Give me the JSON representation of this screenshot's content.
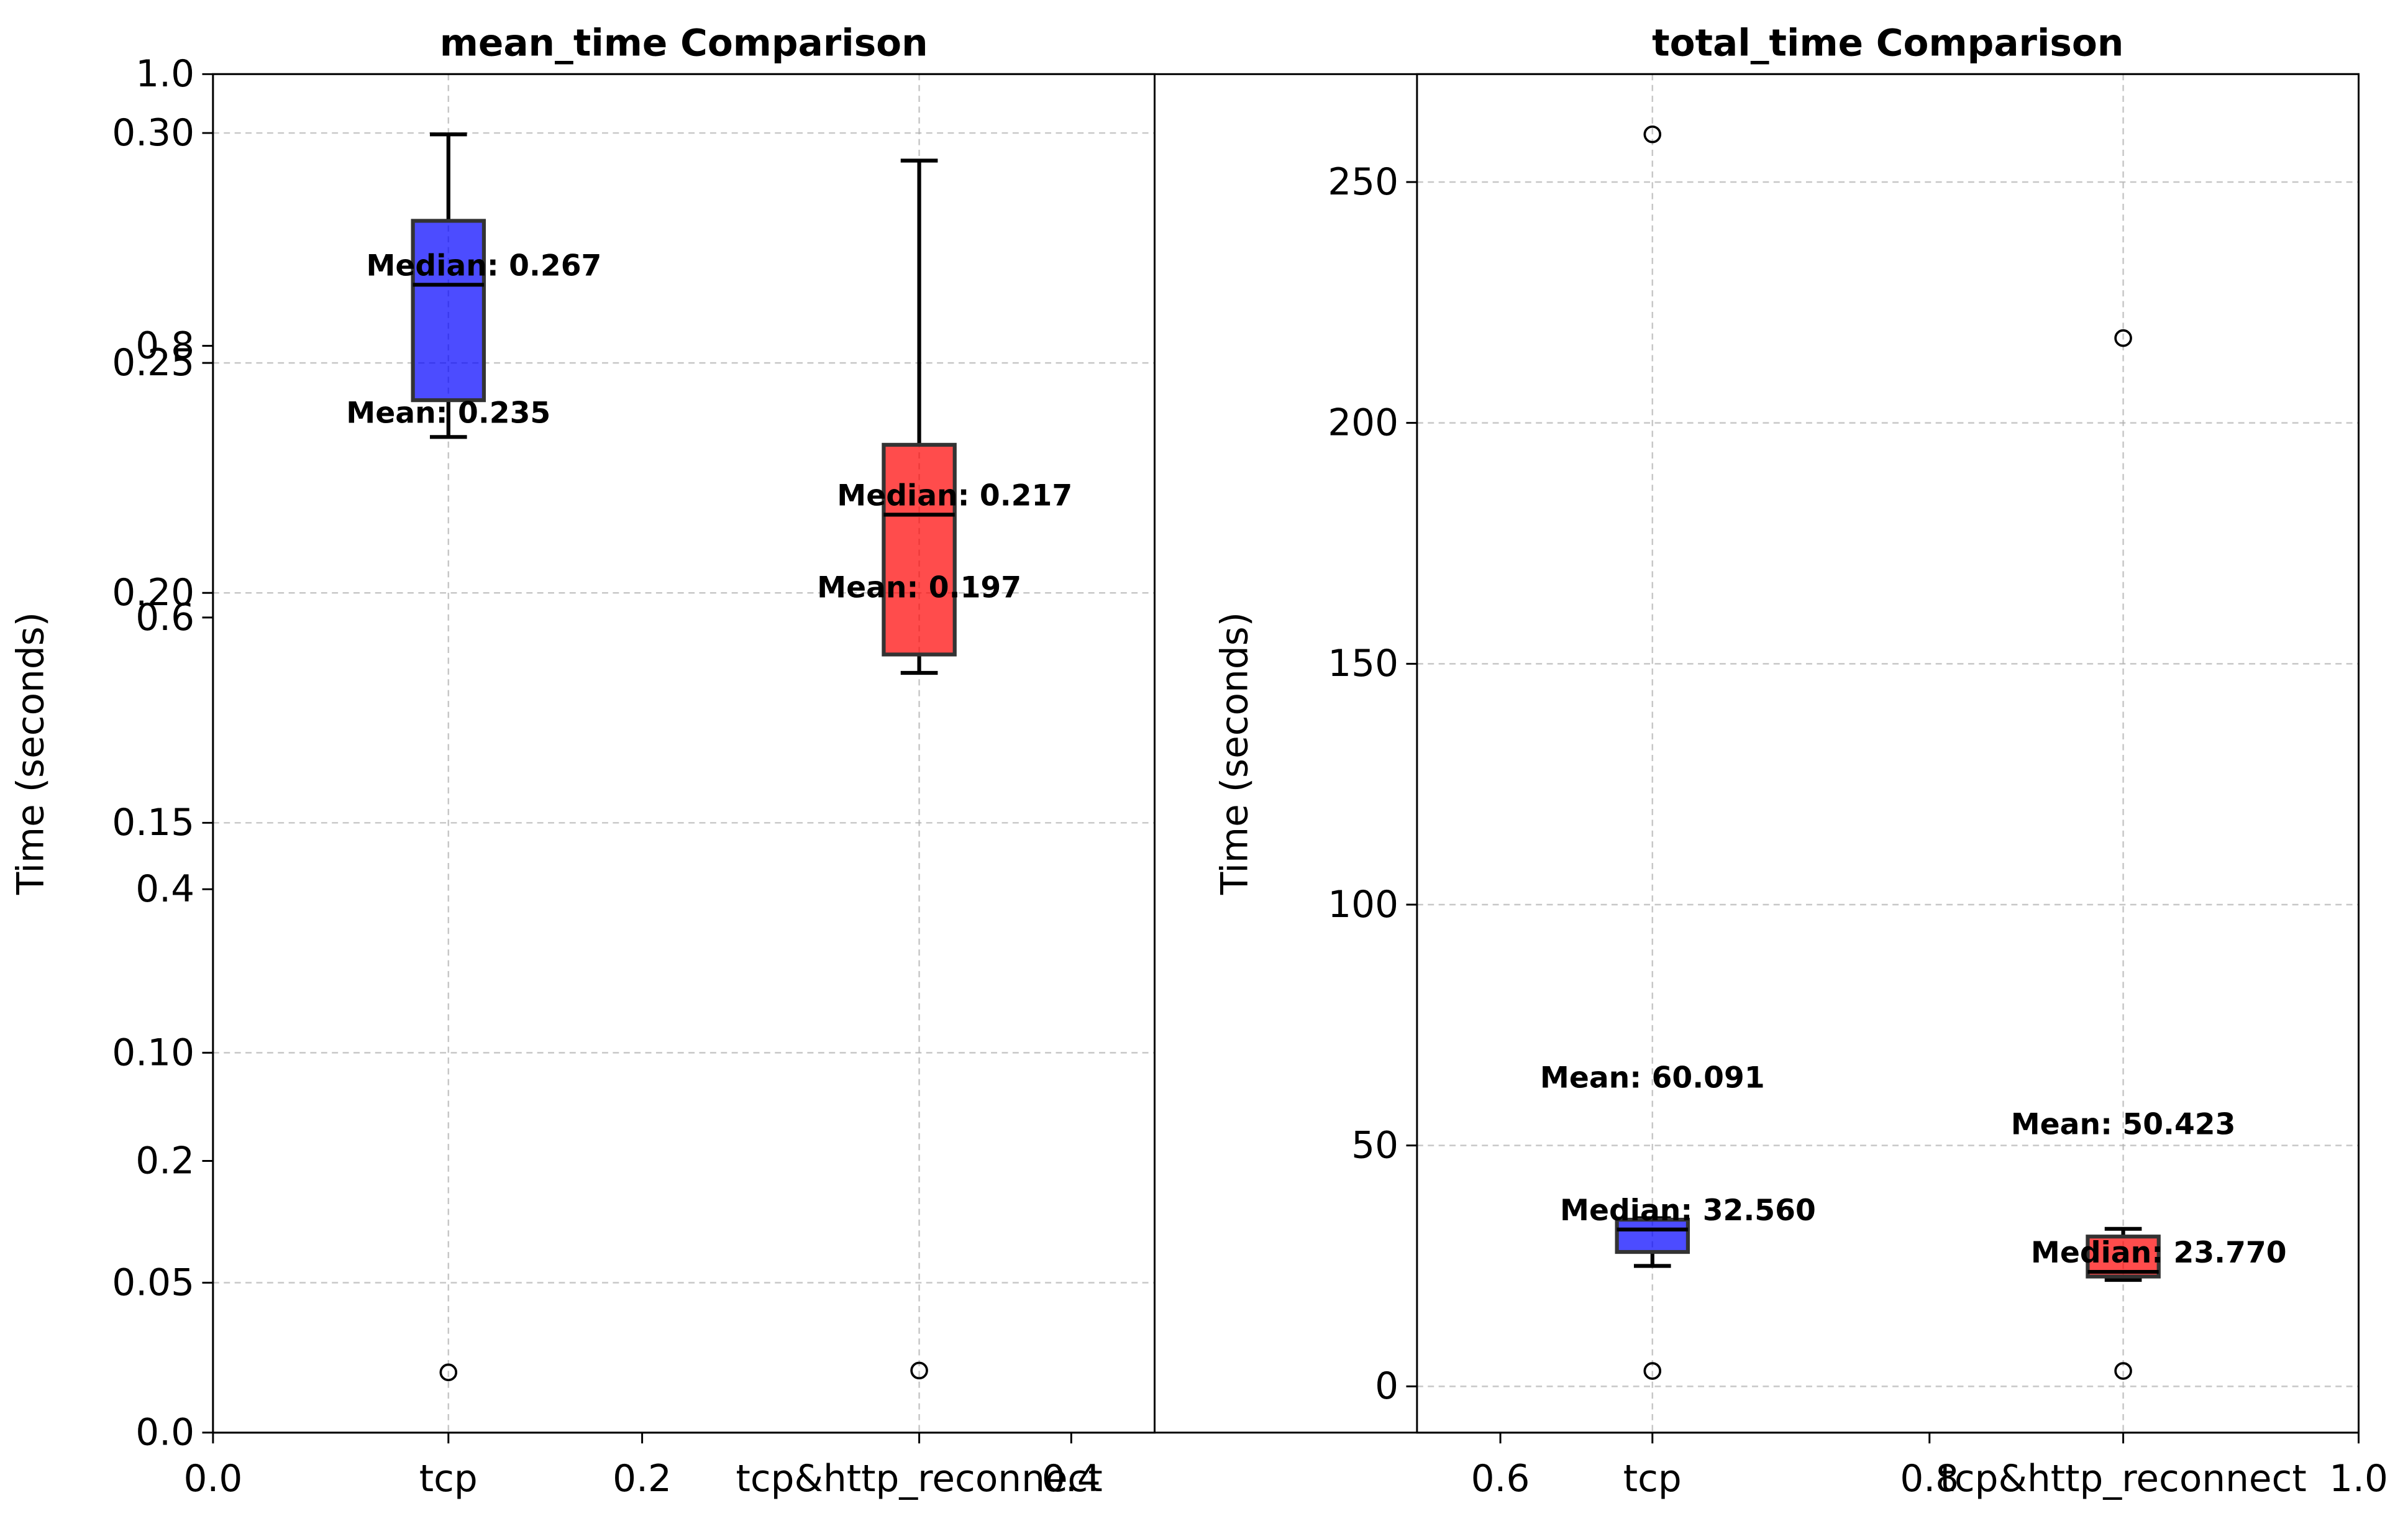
{
  "chart_data": [
    {
      "type": "axes",
      "xlim": [
        0,
        1
      ],
      "xticks": [
        {
          "value": 0,
          "label": "0.0"
        },
        0.2,
        0.4,
        0.6,
        0.8,
        {
          "value": 1,
          "label": "1.0"
        }
      ],
      "ylim": [
        0,
        1
      ],
      "yticks": [
        {
          "value": 0,
          "label": "0.0"
        },
        0.2,
        0.4,
        0.6,
        0.8,
        {
          "value": 1,
          "label": "1.0"
        }
      ],
      "grid": false
    },
    {
      "type": "box",
      "title": "mean_time Comparison",
      "ylabel": "Time (seconds)",
      "categories": [
        "tcp",
        "tcp&http_reconnect"
      ],
      "xlim": [
        0.5,
        2.5
      ],
      "ylim": [
        0.0174,
        0.3128
      ],
      "yticks": [
        0.05,
        {
          "value": 0.1,
          "label": "0.10"
        },
        0.15,
        {
          "value": 0.2,
          "label": "0.20"
        },
        0.25,
        {
          "value": 0.3,
          "label": "0.30"
        }
      ],
      "grid": true,
      "alpha": 0.7,
      "boxes": [
        {
          "color": "#0000ff",
          "whislo": 0.2339,
          "q1": 0.2419,
          "median": 0.267,
          "q3": 0.2809,
          "whishi": 0.2997,
          "fliers": [
            0.0305
          ],
          "mean": 0.235,
          "median_label": "Median: 0.267",
          "mean_label": "Mean: 0.235"
        },
        {
          "color": "#ff0000",
          "whislo": 0.1826,
          "q1": 0.1866,
          "median": 0.217,
          "q3": 0.2322,
          "whishi": 0.294,
          "fliers": [
            0.0309
          ],
          "mean": 0.197,
          "median_label": "Median: 0.217",
          "mean_label": "Mean: 0.197"
        }
      ]
    },
    {
      "type": "box",
      "title": "total_time Comparison",
      "ylabel": "Time (seconds)",
      "categories": [
        "tcp",
        "tcp&http_reconnect"
      ],
      "xlim": [
        0.5,
        2.5
      ],
      "ylim": [
        -9.6,
        272.4
      ],
      "yticks": [
        0,
        50,
        100,
        150,
        200,
        250
      ],
      "grid": true,
      "alpha": 0.7,
      "boxes": [
        {
          "color": "#0000ff",
          "whislo": 25.0,
          "q1": 27.9,
          "median": 32.56,
          "q3": 34.6,
          "whishi": 34.9,
          "fliers": [
            259.9,
            3.2
          ],
          "mean": 60.091,
          "median_label": "Median: 32.560",
          "mean_label": "Mean: 60.091"
        },
        {
          "color": "#ff0000",
          "whislo": 22.1,
          "q1": 22.8,
          "median": 23.77,
          "q3": 31.1,
          "whishi": 32.7,
          "fliers": [
            217.6,
            3.2
          ],
          "mean": 50.423,
          "median_label": "Median: 23.770",
          "mean_label": "Mean: 50.423"
        }
      ]
    }
  ]
}
